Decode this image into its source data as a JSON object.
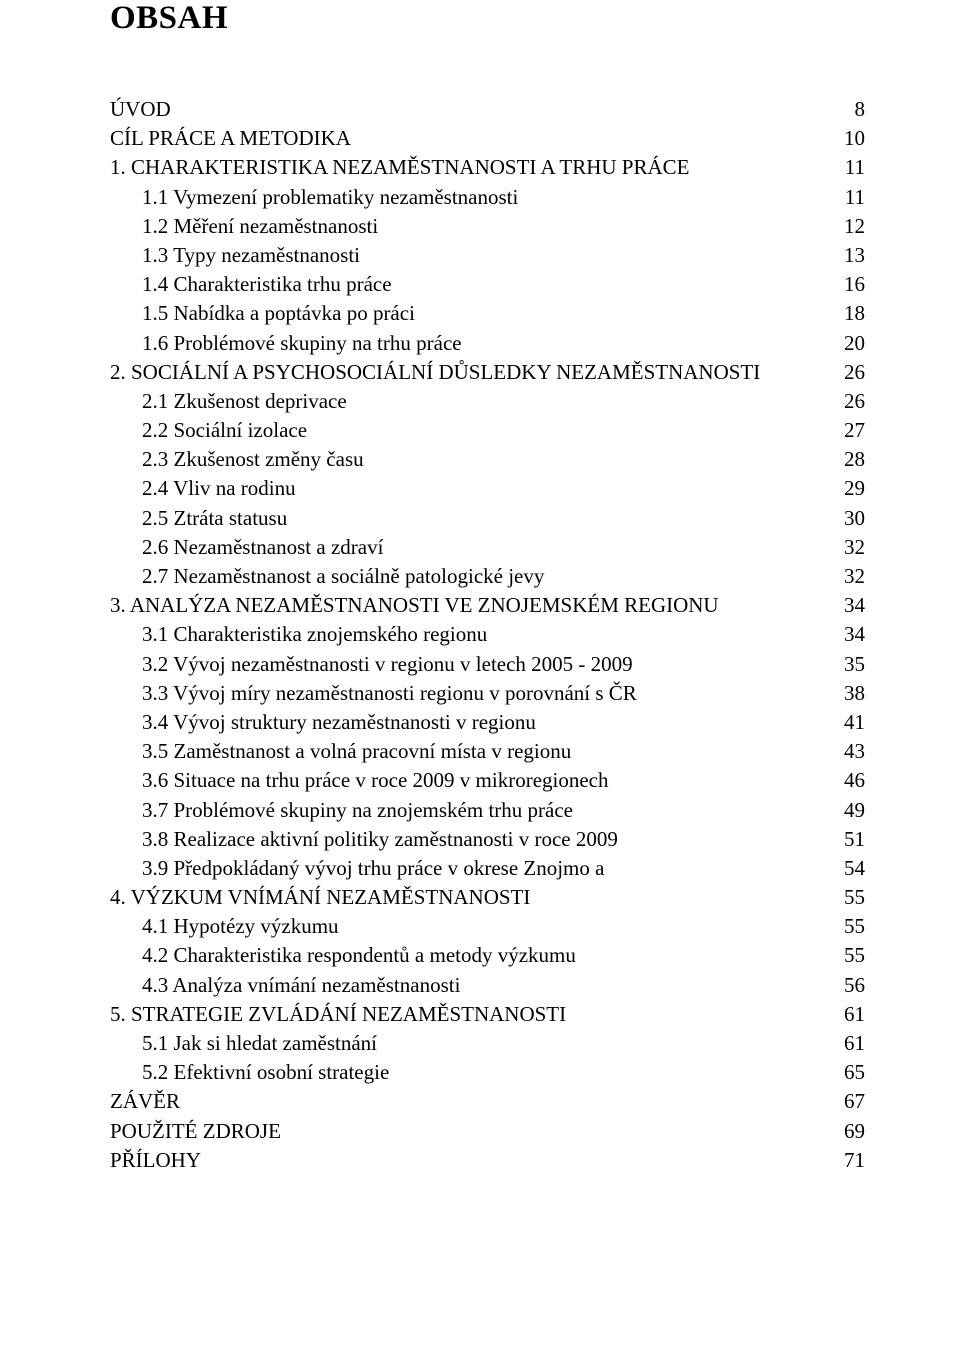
{
  "title": "OBSAH",
  "font": {
    "family": "Times New Roman",
    "title_size_pt": 33,
    "body_size_pt": 21
  },
  "colors": {
    "text": "#000000",
    "background": "#ffffff"
  },
  "entries": [
    {
      "label": "ÚVOD",
      "page": "8",
      "indent": 0
    },
    {
      "label": "CÍL PRÁCE A METODIKA",
      "page": "10",
      "indent": 0
    },
    {
      "label": "1. CHARAKTERISTIKA NEZAMĚSTNANOSTI A TRHU PRÁCE",
      "page": "11",
      "indent": 0
    },
    {
      "label": "1.1 Vymezení problematiky nezaměstnanosti",
      "page": "11",
      "indent": 1
    },
    {
      "label": "1.2 Měření nezaměstnanosti",
      "page": "12",
      "indent": 1
    },
    {
      "label": "1.3 Typy nezaměstnanosti",
      "page": "13",
      "indent": 1
    },
    {
      "label": "1.4 Charakteristika trhu práce",
      "page": "16",
      "indent": 1
    },
    {
      "label": "1.5 Nabídka a poptávka po práci",
      "page": "18",
      "indent": 1
    },
    {
      "label": "1.6 Problémové skupiny na trhu práce",
      "page": "20",
      "indent": 1
    },
    {
      "label": "2. SOCIÁLNÍ  A PSYCHOSOCIÁLNÍ  DŮSLEDKY NEZAMĚSTNANOSTI",
      "page": "26",
      "indent": 0
    },
    {
      "label": "2.1 Zkušenost deprivace",
      "page": "26",
      "indent": 1
    },
    {
      "label": "2.2 Sociální izolace",
      "page": "27",
      "indent": 1
    },
    {
      "label": "2.3 Zkušenost změny času",
      "page": "28",
      "indent": 1
    },
    {
      "label": "2.4 Vliv na rodinu",
      "page": "29",
      "indent": 1
    },
    {
      "label": "2.5 Ztráta statusu",
      "page": "30",
      "indent": 1
    },
    {
      "label": "2.6 Nezaměstnanost a zdraví",
      "page": "32",
      "indent": 1
    },
    {
      "label": "2.7 Nezaměstnanost a sociálně patologické jevy",
      "page": "32",
      "indent": 1
    },
    {
      "label": "3. ANALÝZA NEZAMĚSTNANOSTI VE ZNOJEMSKÉM REGIONU",
      "page": "34",
      "indent": 0
    },
    {
      "label": "3.1 Charakteristika znojemského regionu",
      "page": "34",
      "indent": 1
    },
    {
      "label": "3.2 Vývoj nezaměstnanosti v regionu v letech 2005 - 2009",
      "page": "35",
      "indent": 1
    },
    {
      "label": "3.3 Vývoj míry nezaměstnanosti regionu v porovnání s ČR",
      "page": "38",
      "indent": 1
    },
    {
      "label": "3.4 Vývoj struktury nezaměstnanosti v regionu",
      "page": "41",
      "indent": 1
    },
    {
      "label": "3.5 Zaměstnanost a volná pracovní místa v regionu",
      "page": "43",
      "indent": 1
    },
    {
      "label": "3.6 Situace na trhu práce v roce 2009 v mikroregionech",
      "page": "46",
      "indent": 1
    },
    {
      "label": "3.7 Problémové skupiny na znojemském trhu práce",
      "page": "49",
      "indent": 1
    },
    {
      "label": "3.8 Realizace aktivní politiky zaměstnanosti v roce 2009",
      "page": "51",
      "indent": 1
    },
    {
      "label": "3.9 Předpokládaný vývoj trhu práce v okrese Znojmo a",
      "page": "54",
      "indent": 1
    },
    {
      "label": "4. VÝZKUM VNÍMÁNÍ NEZAMĚSTNANOSTI",
      "page": "55",
      "indent": 0
    },
    {
      "label": "4.1 Hypotézy výzkumu",
      "page": "55",
      "indent": 1
    },
    {
      "label": "4.2 Charakteristika respondentů a metody výzkumu",
      "page": "55",
      "indent": 1
    },
    {
      "label": "4.3 Analýza vnímání nezaměstnanosti",
      "page": "56",
      "indent": 1
    },
    {
      "label": "5. STRATEGIE ZVLÁDÁNÍ NEZAMĚSTNANOSTI",
      "page": "61",
      "indent": 0
    },
    {
      "label": "5.1 Jak si hledat zaměstnání",
      "page": "61",
      "indent": 1
    },
    {
      "label": "5.2 Efektivní osobní strategie",
      "page": "65",
      "indent": 1
    },
    {
      "label": "ZÁVĚR",
      "page": "67",
      "indent": 0
    },
    {
      "label": "POUŽITÉ ZDROJE",
      "page": "69",
      "indent": 0
    },
    {
      "label": "PŘÍLOHY",
      "page": "71",
      "indent": 0
    }
  ]
}
